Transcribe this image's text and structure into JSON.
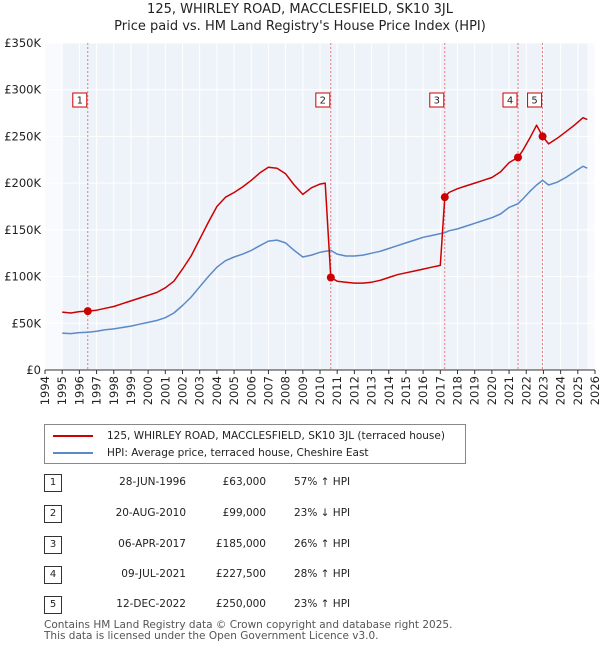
{
  "chart_data": {
    "type": "line",
    "title": "125, WHIRLEY ROAD, MACCLESFIELD, SK10 3JL",
    "subtitle": "Price paid vs. HM Land Registry's House Price Index (HPI)",
    "xlim": [
      1994,
      2026
    ],
    "ylim": [
      0,
      350000
    ],
    "y_ticks": [
      0,
      50000,
      100000,
      150000,
      200000,
      250000,
      300000,
      350000
    ],
    "y_tick_labels": [
      "£0",
      "£50K",
      "£100K",
      "£150K",
      "£200K",
      "£250K",
      "£300K",
      "£350K"
    ],
    "x_ticks": [
      1994,
      1995,
      1996,
      1997,
      1998,
      1999,
      2000,
      2001,
      2002,
      2003,
      2004,
      2005,
      2006,
      2007,
      2008,
      2009,
      2010,
      2011,
      2012,
      2013,
      2014,
      2015,
      2016,
      2017,
      2018,
      2019,
      2020,
      2021,
      2022,
      2023,
      2024,
      2025,
      2026
    ],
    "x_tick_labels": [
      "1994",
      "1995",
      "1996",
      "1997",
      "1998",
      "1999",
      "2000",
      "2001",
      "2002",
      "2003",
      "2004",
      "2005",
      "2006",
      "2007",
      "2008",
      "2009",
      "2010",
      "2011",
      "2012",
      "2013",
      "2014",
      "2015",
      "2016",
      "2017",
      "2018",
      "2019",
      "2020",
      "2021",
      "2022",
      "2023",
      "2024",
      "2025",
      "2026"
    ],
    "data_start": 1995.0,
    "data_end": 2025.55,
    "series": [
      {
        "name": "125, WHIRLEY ROAD, MACCLESFIELD, SK10 3JL (terraced house)",
        "color": "#cc0000",
        "points": [
          [
            1995.0,
            62000
          ],
          [
            1995.5,
            61000
          ],
          [
            1996.0,
            62500
          ],
          [
            1996.49,
            63000
          ],
          [
            1997.0,
            64000
          ],
          [
            1997.5,
            66000
          ],
          [
            1998.0,
            68000
          ],
          [
            1998.5,
            71000
          ],
          [
            1999.0,
            74000
          ],
          [
            1999.5,
            77000
          ],
          [
            2000.0,
            80000
          ],
          [
            2000.5,
            83000
          ],
          [
            2001.0,
            88000
          ],
          [
            2001.5,
            95000
          ],
          [
            2002.0,
            108000
          ],
          [
            2002.5,
            122000
          ],
          [
            2003.0,
            140000
          ],
          [
            2003.5,
            158000
          ],
          [
            2004.0,
            175000
          ],
          [
            2004.5,
            185000
          ],
          [
            2005.0,
            190000
          ],
          [
            2005.5,
            196000
          ],
          [
            2006.0,
            203000
          ],
          [
            2006.5,
            211000
          ],
          [
            2007.0,
            217000
          ],
          [
            2007.5,
            216000
          ],
          [
            2008.0,
            210000
          ],
          [
            2008.5,
            198000
          ],
          [
            2009.0,
            188000
          ],
          [
            2009.5,
            195000
          ],
          [
            2010.0,
            199000
          ],
          [
            2010.3,
            200000
          ],
          [
            2010.63,
            99000
          ],
          [
            2011.0,
            95000
          ],
          [
            2011.5,
            94000
          ],
          [
            2012.0,
            93000
          ],
          [
            2012.5,
            93000
          ],
          [
            2013.0,
            94000
          ],
          [
            2013.5,
            96000
          ],
          [
            2014.0,
            99000
          ],
          [
            2014.5,
            102000
          ],
          [
            2015.0,
            104000
          ],
          [
            2015.5,
            106000
          ],
          [
            2016.0,
            108000
          ],
          [
            2016.5,
            110000
          ],
          [
            2017.0,
            112000
          ],
          [
            2017.26,
            185000
          ],
          [
            2017.5,
            190000
          ],
          [
            2018.0,
            194000
          ],
          [
            2018.5,
            197000
          ],
          [
            2019.0,
            200000
          ],
          [
            2019.5,
            203000
          ],
          [
            2020.0,
            206000
          ],
          [
            2020.5,
            212000
          ],
          [
            2021.0,
            222000
          ],
          [
            2021.52,
            227500
          ],
          [
            2021.8,
            235000
          ],
          [
            2022.2,
            248000
          ],
          [
            2022.6,
            262000
          ],
          [
            2022.95,
            250000
          ],
          [
            2023.3,
            242000
          ],
          [
            2023.8,
            248000
          ],
          [
            2024.3,
            255000
          ],
          [
            2024.8,
            262000
          ],
          [
            2025.3,
            270000
          ],
          [
            2025.55,
            268000
          ]
        ]
      },
      {
        "name": "HPI: Average price, terraced house, Cheshire East",
        "color": "#5b8ac6",
        "points": [
          [
            1995.0,
            39500
          ],
          [
            1995.5,
            39000
          ],
          [
            1996.0,
            40000
          ],
          [
            1996.5,
            40500
          ],
          [
            1997.0,
            41500
          ],
          [
            1997.5,
            43000
          ],
          [
            1998.0,
            44000
          ],
          [
            1998.5,
            45500
          ],
          [
            1999.0,
            47000
          ],
          [
            1999.5,
            49000
          ],
          [
            2000.0,
            51000
          ],
          [
            2000.5,
            53000
          ],
          [
            2001.0,
            56000
          ],
          [
            2001.5,
            61000
          ],
          [
            2002.0,
            69000
          ],
          [
            2002.5,
            78000
          ],
          [
            2003.0,
            89000
          ],
          [
            2003.5,
            100000
          ],
          [
            2004.0,
            110000
          ],
          [
            2004.5,
            117000
          ],
          [
            2005.0,
            121000
          ],
          [
            2005.5,
            124000
          ],
          [
            2006.0,
            128000
          ],
          [
            2006.5,
            133000
          ],
          [
            2007.0,
            138000
          ],
          [
            2007.5,
            139000
          ],
          [
            2008.0,
            136000
          ],
          [
            2008.5,
            128000
          ],
          [
            2009.0,
            121000
          ],
          [
            2009.5,
            123000
          ],
          [
            2010.0,
            126000
          ],
          [
            2010.63,
            128000
          ],
          [
            2011.0,
            124000
          ],
          [
            2011.5,
            122000
          ],
          [
            2012.0,
            122000
          ],
          [
            2012.5,
            123000
          ],
          [
            2013.0,
            125000
          ],
          [
            2013.5,
            127000
          ],
          [
            2014.0,
            130000
          ],
          [
            2014.5,
            133000
          ],
          [
            2015.0,
            136000
          ],
          [
            2015.5,
            139000
          ],
          [
            2016.0,
            142000
          ],
          [
            2016.5,
            144000
          ],
          [
            2017.0,
            146000
          ],
          [
            2017.26,
            147000
          ],
          [
            2017.5,
            149000
          ],
          [
            2018.0,
            151000
          ],
          [
            2018.5,
            154000
          ],
          [
            2019.0,
            157000
          ],
          [
            2019.5,
            160000
          ],
          [
            2020.0,
            163000
          ],
          [
            2020.5,
            167000
          ],
          [
            2021.0,
            174000
          ],
          [
            2021.52,
            178000
          ],
          [
            2021.8,
            183000
          ],
          [
            2022.2,
            191000
          ],
          [
            2022.6,
            198000
          ],
          [
            2022.95,
            203000
          ],
          [
            2023.3,
            198000
          ],
          [
            2023.8,
            201000
          ],
          [
            2024.3,
            206000
          ],
          [
            2024.8,
            212000
          ],
          [
            2025.3,
            218000
          ],
          [
            2025.55,
            216000
          ]
        ]
      }
    ],
    "sales": [
      {
        "n": "1",
        "x": 1996.49,
        "y": 63000
      },
      {
        "n": "2",
        "x": 2010.63,
        "y": 99000
      },
      {
        "n": "3",
        "x": 2017.26,
        "y": 185000
      },
      {
        "n": "4",
        "x": 2021.52,
        "y": 227500
      },
      {
        "n": "5",
        "x": 2022.95,
        "y": 250000
      }
    ]
  },
  "legend": {
    "property": "125, WHIRLEY ROAD, MACCLESFIELD, SK10 3JL (terraced house)",
    "hpi": "HPI: Average price, terraced house, Cheshire East",
    "property_color": "#cc0000",
    "hpi_color": "#5b8ac6"
  },
  "transactions": [
    {
      "n": "1",
      "date": "28-JUN-1996",
      "price": "£63,000",
      "hpi": "57% ↑ HPI"
    },
    {
      "n": "2",
      "date": "20-AUG-2010",
      "price": "£99,000",
      "hpi": "23% ↓ HPI"
    },
    {
      "n": "3",
      "date": "06-APR-2017",
      "price": "£185,000",
      "hpi": "26% ↑ HPI"
    },
    {
      "n": "4",
      "date": "09-JUL-2021",
      "price": "£227,500",
      "hpi": "28% ↑ HPI"
    },
    {
      "n": "5",
      "date": "12-DEC-2022",
      "price": "£250,000",
      "hpi": "23% ↑ HPI"
    }
  ],
  "footer": {
    "line1": "Contains HM Land Registry data © Crown copyright and database right 2025.",
    "line2": "This data is licensed under the Open Government Licence v3.0."
  }
}
